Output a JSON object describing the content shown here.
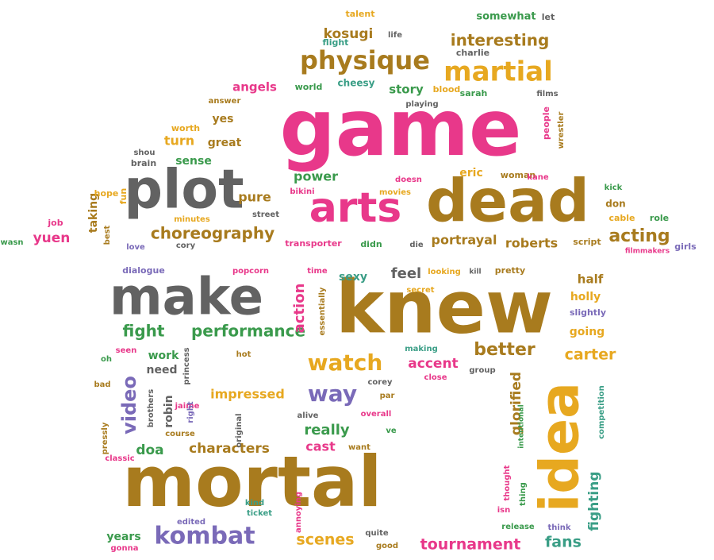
{
  "palette": {
    "pink": "#e8388a",
    "brown": "#a87b1e",
    "gray": "#626262",
    "green": "#3a9a4c",
    "teal": "#3a9e86",
    "gold": "#e7a820",
    "purple": "#7a6ab8"
  },
  "words": [
    {
      "text": "game",
      "color": "pink"
    },
    {
      "text": "knew",
      "color": "brown"
    },
    {
      "text": "mortal",
      "color": "brown"
    },
    {
      "text": "dead",
      "color": "brown"
    },
    {
      "text": "plot",
      "color": "gray"
    },
    {
      "text": "make",
      "color": "gray"
    },
    {
      "text": "arts",
      "color": "pink"
    },
    {
      "text": "idea",
      "color": "gold"
    },
    {
      "text": "martial",
      "color": "gold"
    },
    {
      "text": "physique",
      "color": "brown"
    },
    {
      "text": "kombat",
      "color": "purple"
    },
    {
      "text": "watch",
      "color": "gold"
    },
    {
      "text": "way",
      "color": "purple"
    },
    {
      "text": "choreography",
      "color": "brown"
    },
    {
      "text": "performance",
      "color": "green"
    },
    {
      "text": "fight",
      "color": "green"
    },
    {
      "text": "interesting",
      "color": "brown"
    },
    {
      "text": "acting",
      "color": "brown"
    },
    {
      "text": "video",
      "color": "purple"
    },
    {
      "text": "tournament",
      "color": "pink"
    },
    {
      "text": "scenes",
      "color": "gold"
    },
    {
      "text": "fans",
      "color": "teal"
    },
    {
      "text": "better",
      "color": "brown"
    },
    {
      "text": "carter",
      "color": "gold"
    },
    {
      "text": "accent",
      "color": "pink"
    },
    {
      "text": "action",
      "color": "pink"
    },
    {
      "text": "glorified",
      "color": "brown"
    },
    {
      "text": "fighting",
      "color": "teal"
    },
    {
      "text": "really",
      "color": "green"
    },
    {
      "text": "impressed",
      "color": "gold"
    },
    {
      "text": "characters",
      "color": "brown"
    },
    {
      "text": "doa",
      "color": "green"
    },
    {
      "text": "cast",
      "color": "pink"
    },
    {
      "text": "portrayal",
      "color": "brown"
    },
    {
      "text": "roberts",
      "color": "brown"
    },
    {
      "text": "kosugi",
      "color": "brown"
    },
    {
      "text": "story",
      "color": "green"
    },
    {
      "text": "angels",
      "color": "pink"
    },
    {
      "text": "pure",
      "color": "brown"
    },
    {
      "text": "power",
      "color": "green"
    },
    {
      "text": "feel",
      "color": "gray"
    },
    {
      "text": "sexy",
      "color": "teal"
    },
    {
      "text": "yuen",
      "color": "pink"
    },
    {
      "text": "taking",
      "color": "brown"
    },
    {
      "text": "turn",
      "color": "gold"
    },
    {
      "text": "great",
      "color": "brown"
    },
    {
      "text": "yes",
      "color": "brown"
    },
    {
      "text": "sense",
      "color": "green"
    },
    {
      "text": "robin",
      "color": "gray"
    },
    {
      "text": "work",
      "color": "green"
    },
    {
      "text": "need",
      "color": "gray"
    },
    {
      "text": "half",
      "color": "brown"
    },
    {
      "text": "holly",
      "color": "gold"
    },
    {
      "text": "going",
      "color": "gold"
    },
    {
      "text": "eric",
      "color": "gold"
    },
    {
      "text": "years",
      "color": "green"
    },
    {
      "text": "somewhat",
      "color": "green"
    },
    {
      "text": "talent",
      "color": "gold"
    },
    {
      "text": "let",
      "color": "gray"
    },
    {
      "text": "flight",
      "color": "teal"
    },
    {
      "text": "life",
      "color": "gray"
    },
    {
      "text": "charlie",
      "color": "gray"
    },
    {
      "text": "world",
      "color": "green"
    },
    {
      "text": "cheesy",
      "color": "teal"
    },
    {
      "text": "blood",
      "color": "gold"
    },
    {
      "text": "sarah",
      "color": "green"
    },
    {
      "text": "films",
      "color": "gray"
    },
    {
      "text": "playing",
      "color": "gray"
    },
    {
      "text": "answer",
      "color": "brown"
    },
    {
      "text": "worth",
      "color": "gold"
    },
    {
      "text": "shou",
      "color": "gray"
    },
    {
      "text": "brain",
      "color": "gray"
    },
    {
      "text": "fun",
      "color": "gold"
    },
    {
      "text": "hope",
      "color": "gold"
    },
    {
      "text": "job",
      "color": "pink"
    },
    {
      "text": "wasn",
      "color": "green"
    },
    {
      "text": "best",
      "color": "brown"
    },
    {
      "text": "love",
      "color": "purple"
    },
    {
      "text": "minutes",
      "color": "gold"
    },
    {
      "text": "cory",
      "color": "gray"
    },
    {
      "text": "street",
      "color": "gray"
    },
    {
      "text": "bikini",
      "color": "pink"
    },
    {
      "text": "movies",
      "color": "gold"
    },
    {
      "text": "doesn",
      "color": "pink"
    },
    {
      "text": "woman",
      "color": "brown"
    },
    {
      "text": "kane",
      "color": "pink"
    },
    {
      "text": "people",
      "color": "pink"
    },
    {
      "text": "wrestler",
      "color": "brown"
    },
    {
      "text": "kick",
      "color": "green"
    },
    {
      "text": "don",
      "color": "brown"
    },
    {
      "text": "cable",
      "color": "gold"
    },
    {
      "text": "role",
      "color": "green"
    },
    {
      "text": "girls",
      "color": "purple"
    },
    {
      "text": "filmmakers",
      "color": "pink"
    },
    {
      "text": "script",
      "color": "brown"
    },
    {
      "text": "transporter",
      "color": "pink"
    },
    {
      "text": "didn",
      "color": "green"
    },
    {
      "text": "die",
      "color": "gray"
    },
    {
      "text": "dialogue",
      "color": "purple"
    },
    {
      "text": "popcorn",
      "color": "pink"
    },
    {
      "text": "time",
      "color": "pink"
    },
    {
      "text": "looking",
      "color": "gold"
    },
    {
      "text": "kill",
      "color": "gray"
    },
    {
      "text": "pretty",
      "color": "brown"
    },
    {
      "text": "essentially",
      "color": "brown"
    },
    {
      "text": "secret",
      "color": "gold"
    },
    {
      "text": "slightly",
      "color": "purple"
    },
    {
      "text": "seen",
      "color": "pink"
    },
    {
      "text": "oh",
      "color": "green"
    },
    {
      "text": "princess",
      "color": "gray"
    },
    {
      "text": "hot",
      "color": "brown"
    },
    {
      "text": "making",
      "color": "teal"
    },
    {
      "text": "close",
      "color": "pink"
    },
    {
      "text": "group",
      "color": "gray"
    },
    {
      "text": "bad",
      "color": "brown"
    },
    {
      "text": "brothers",
      "color": "gray"
    },
    {
      "text": "jaime",
      "color": "pink"
    },
    {
      "text": "right",
      "color": "purple"
    },
    {
      "text": "corey",
      "color": "gray"
    },
    {
      "text": "par",
      "color": "brown"
    },
    {
      "text": "overall",
      "color": "pink"
    },
    {
      "text": "alive",
      "color": "gray"
    },
    {
      "text": "ve",
      "color": "green"
    },
    {
      "text": "original",
      "color": "gray"
    },
    {
      "text": "course",
      "color": "brown"
    },
    {
      "text": "pressly",
      "color": "brown"
    },
    {
      "text": "classic",
      "color": "pink"
    },
    {
      "text": "want",
      "color": "brown"
    },
    {
      "text": "intentional",
      "color": "green"
    },
    {
      "text": "competition",
      "color": "teal"
    },
    {
      "text": "thought",
      "color": "pink"
    },
    {
      "text": "thing",
      "color": "green"
    },
    {
      "text": "isn",
      "color": "pink"
    },
    {
      "text": "release",
      "color": "green"
    },
    {
      "text": "think",
      "color": "purple"
    },
    {
      "text": "kind",
      "color": "teal"
    },
    {
      "text": "ticket",
      "color": "teal"
    },
    {
      "text": "annoying",
      "color": "pink"
    },
    {
      "text": "edited",
      "color": "purple"
    },
    {
      "text": "gonna",
      "color": "pink"
    },
    {
      "text": "quite",
      "color": "gray"
    },
    {
      "text": "good",
      "color": "brown"
    }
  ]
}
